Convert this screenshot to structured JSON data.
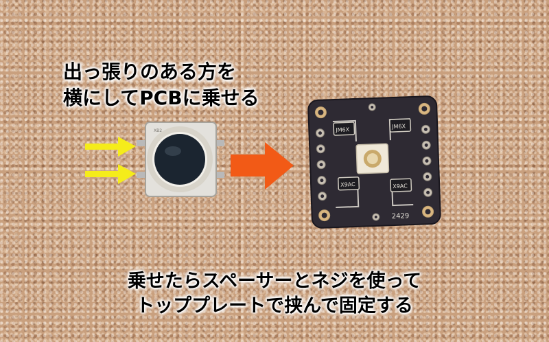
{
  "caption_top": {
    "line1": "出っ張りのある方を",
    "line2": "横にしてPCBに乗せる"
  },
  "caption_bottom": {
    "line1": "乗せたらスペーサーとネジを使って",
    "line2": "トッププレートで挟んで固定する"
  },
  "button_top_marking": "XB2",
  "pcb": {
    "chip_labels": [
      "JM6X",
      "JM6X",
      "X9AC",
      "X9AC"
    ],
    "board_number": "2429"
  },
  "colors": {
    "cork": "#c9a07e",
    "pcb": "#2e2a33",
    "yellow_arrow": "#f5ec1a",
    "orange_arrow": "#f25a16",
    "button_cap": "#1b2530"
  }
}
